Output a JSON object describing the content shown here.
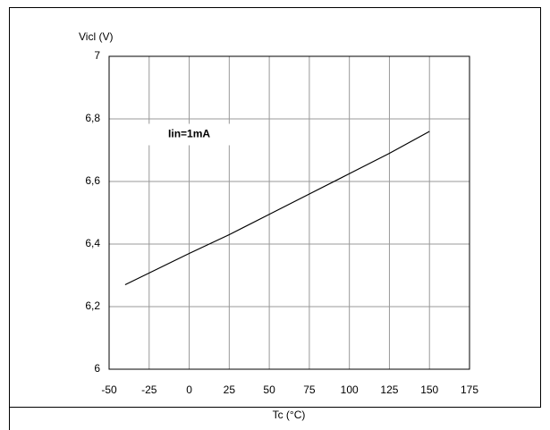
{
  "chart_data": {
    "type": "line",
    "x_label": "Tc (°C)",
    "y_label": "Vicl (V)",
    "annotation": "Iin=1mA",
    "x": [
      -40,
      0,
      25,
      50,
      75,
      100,
      125,
      150
    ],
    "series": [
      {
        "color": "#000000",
        "values": [
          6.27,
          6.37,
          6.43,
          6.495,
          6.56,
          6.625,
          6.69,
          6.76
        ]
      }
    ],
    "xlim": [
      -50,
      175
    ],
    "xticks": [
      -50,
      -25,
      0,
      25,
      50,
      75,
      100,
      125,
      150,
      175
    ],
    "ylim": [
      6,
      7
    ],
    "yticks": [
      6,
      {
        "value": 6.2,
        "label": "6,2"
      },
      {
        "value": 6.4,
        "label": "6,4"
      },
      {
        "value": 6.6,
        "label": "6,6"
      },
      {
        "value": 6.8,
        "label": "6,8"
      },
      7
    ],
    "grid": true
  }
}
